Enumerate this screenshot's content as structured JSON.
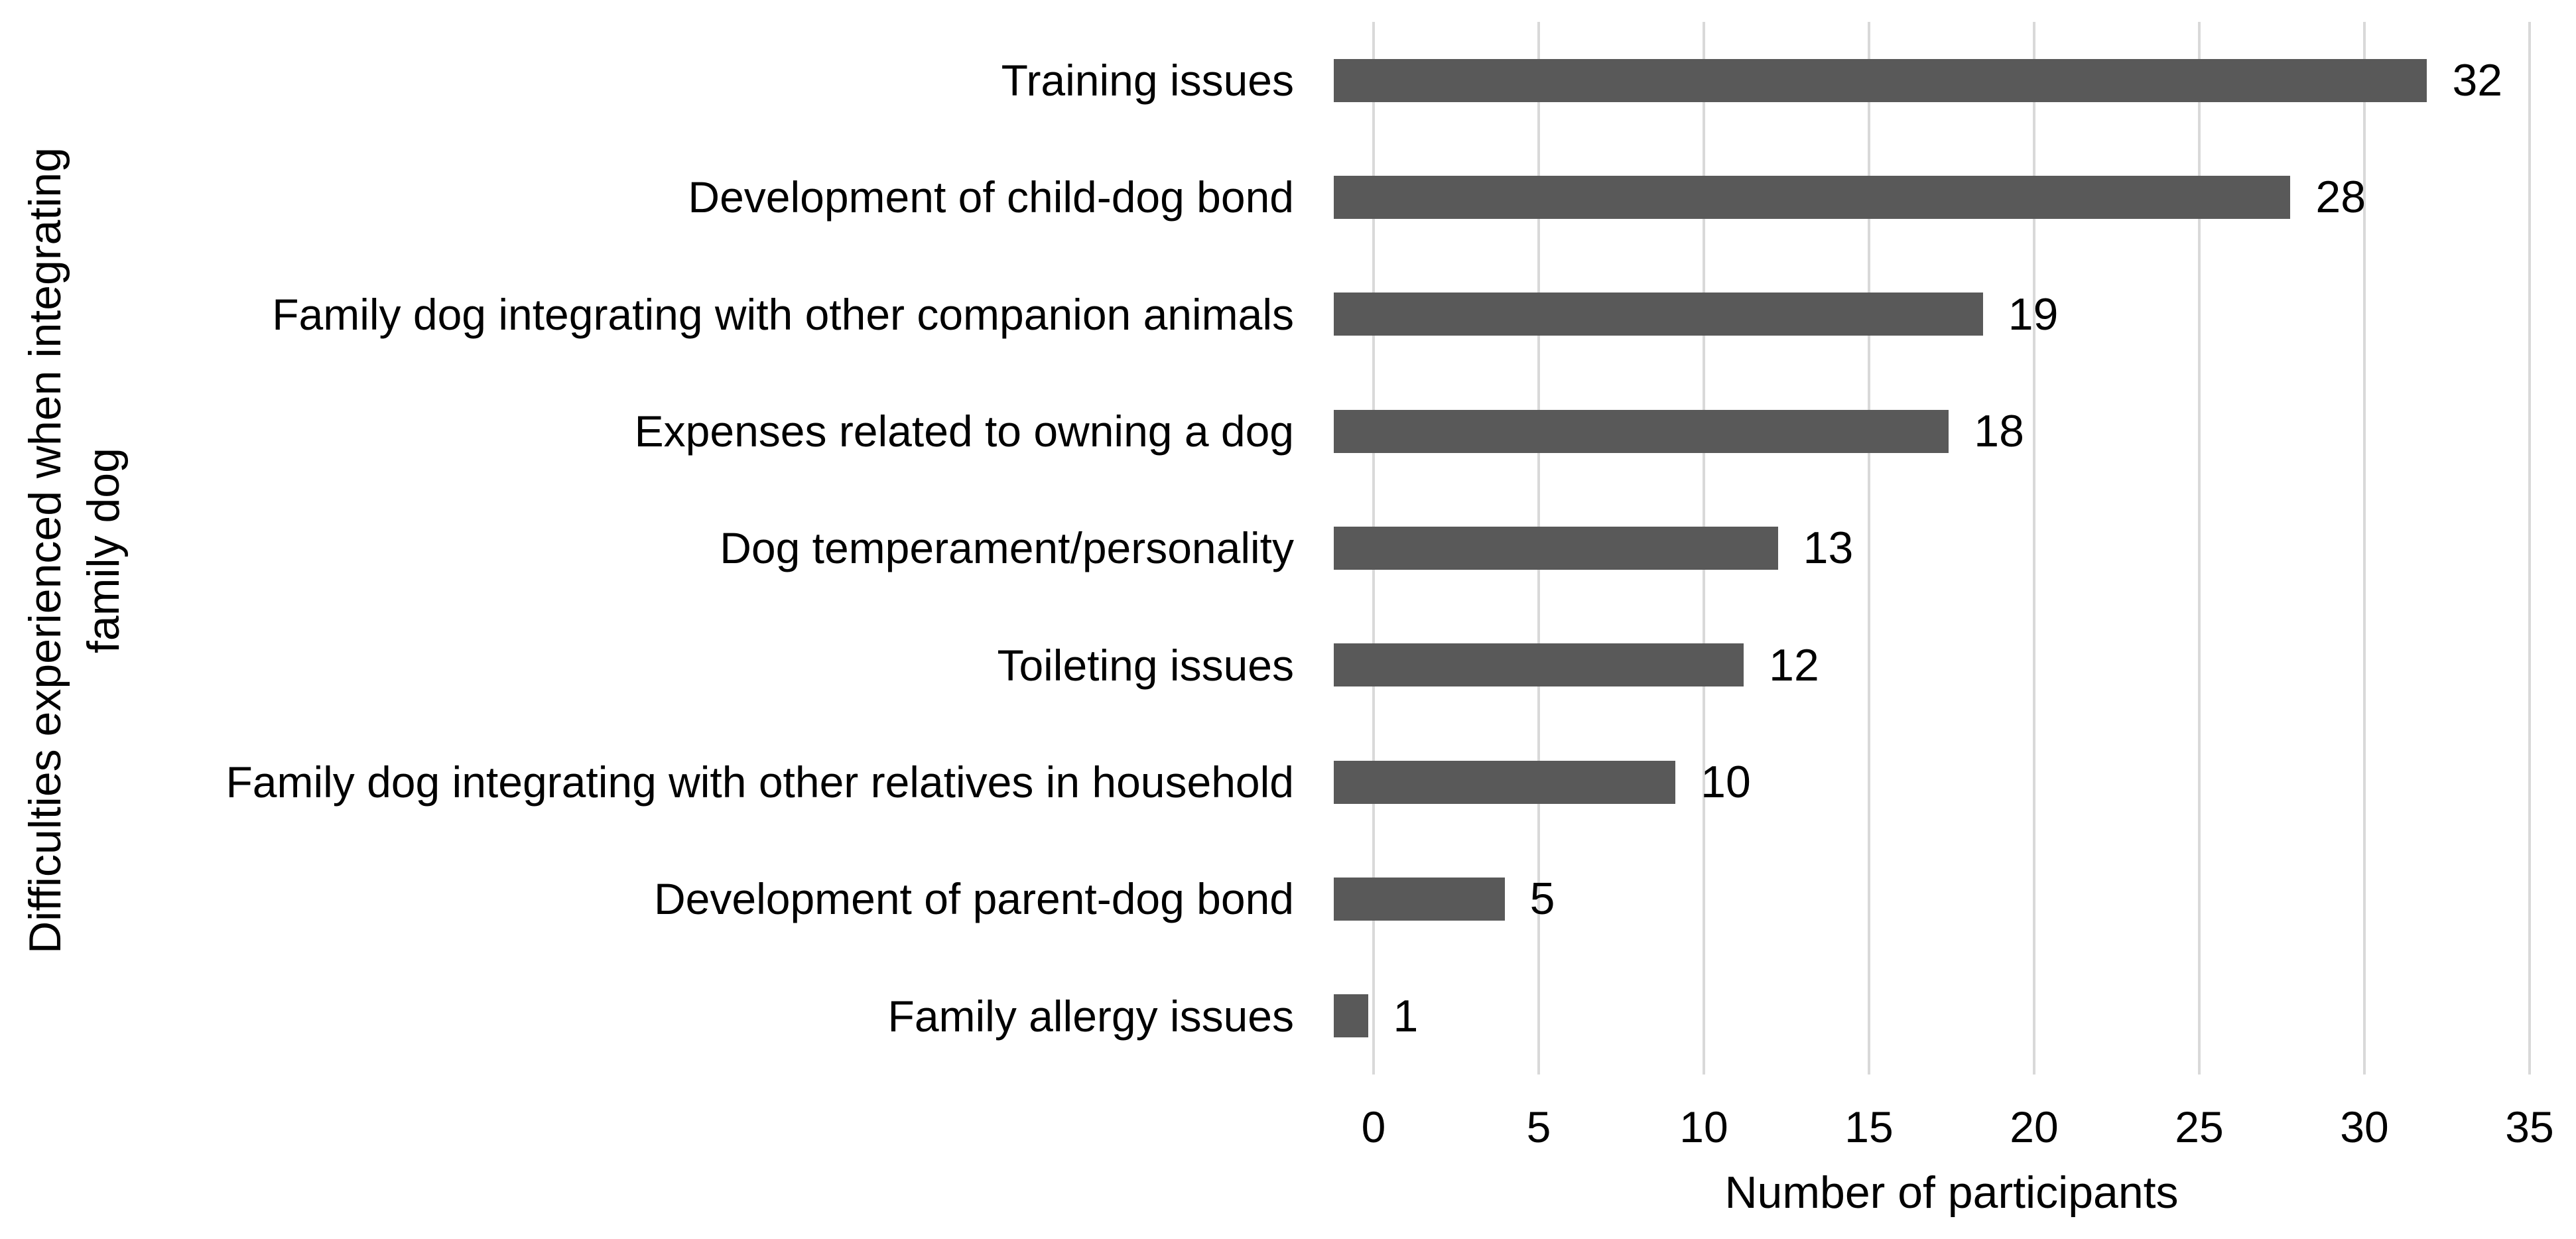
{
  "chart_data": {
    "type": "bar",
    "orientation": "horizontal",
    "categories": [
      "Training issues",
      "Development of child-dog bond",
      "Family dog integrating with other companion animals",
      "Expenses related to owning a dog",
      "Dog temperament/personality",
      "Toileting issues",
      "Family dog integrating with other relatives in household",
      "Development of parent-dog bond",
      "Family allergy issues"
    ],
    "values": [
      32,
      28,
      19,
      18,
      13,
      12,
      10,
      5,
      1
    ],
    "data_labels": [
      32,
      28,
      19,
      18,
      13,
      12,
      10,
      5,
      1
    ],
    "xlabel": "Number of participants",
    "ylabel": "Difficulties experienced when integrating family dog",
    "ylabel_lines": [
      "Difficulties experienced when integrating",
      "family dog"
    ],
    "xticks": [
      0,
      5,
      10,
      15,
      20,
      25,
      30,
      35
    ],
    "xlim": [
      0,
      35
    ],
    "grid": "vertical-only",
    "legend": "none",
    "title": "",
    "bar_color": "#595959",
    "gridline_color": "#d9d9d9",
    "text_color": "#000000",
    "background_color": "#ffffff"
  }
}
